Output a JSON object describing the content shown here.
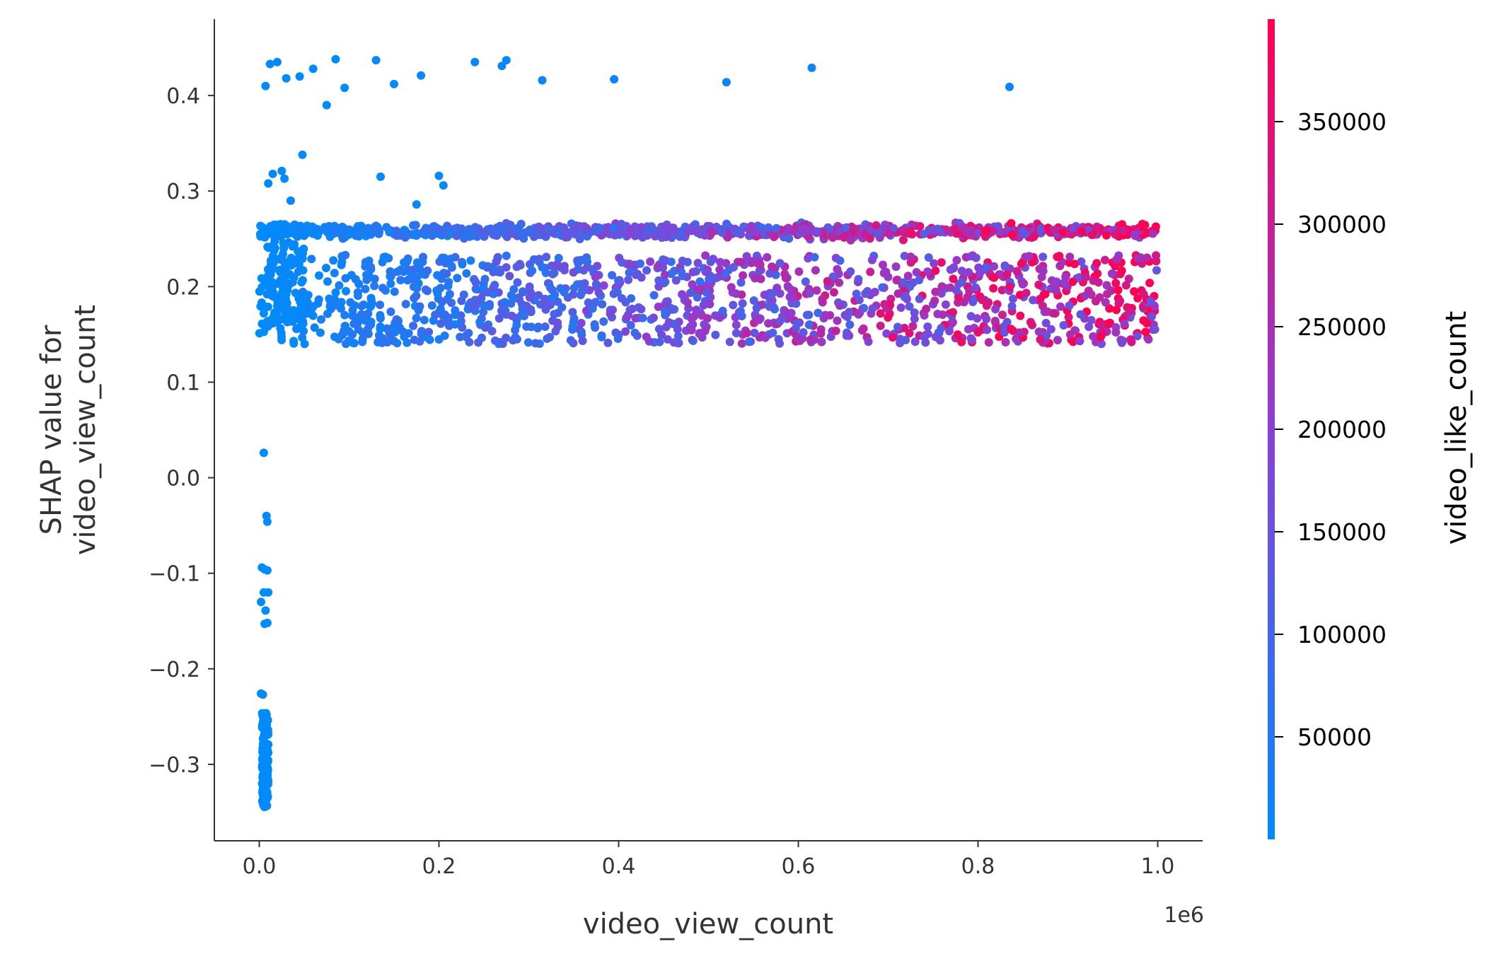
{
  "chart_data": {
    "type": "scatter",
    "xlabel": "video_view_count",
    "ylabel_lines": [
      "SHAP value for",
      "video_view_count"
    ],
    "x_offset_label": "1e6",
    "xlim": [
      -50000,
      1050000
    ],
    "ylim": [
      -0.38,
      0.48
    ],
    "x_ticks": [
      0,
      200000,
      400000,
      600000,
      800000,
      1000000
    ],
    "x_tick_labels": [
      "0.0",
      "0.2",
      "0.4",
      "0.6",
      "0.8",
      "1.0"
    ],
    "y_ticks": [
      -0.3,
      -0.2,
      -0.1,
      0.0,
      0.1,
      0.2,
      0.3,
      0.4
    ],
    "y_tick_labels": [
      "−0.3",
      "−0.2",
      "−0.1",
      "0.0",
      "0.1",
      "0.2",
      "0.3",
      "0.4"
    ],
    "colorbar": {
      "label": "video_like_count",
      "range": [
        0,
        400000
      ],
      "ticks": [
        50000,
        100000,
        150000,
        200000,
        250000,
        300000,
        350000
      ],
      "tick_labels": [
        "50000",
        "100000",
        "150000",
        "200000",
        "250000",
        "300000",
        "350000"
      ],
      "color_low": "#008bfb",
      "color_high": "#ff0052"
    },
    "points_note_free": true,
    "points": [
      [
        7000,
        0.41,
        2000
      ],
      [
        12000,
        0.433,
        3000
      ],
      [
        20000,
        0.435,
        2500
      ],
      [
        30000,
        0.418,
        4000
      ],
      [
        45000,
        0.42,
        5000
      ],
      [
        60000,
        0.428,
        3000
      ],
      [
        75000,
        0.39,
        4000
      ],
      [
        85000,
        0.438,
        6000
      ],
      [
        95000,
        0.408,
        5000
      ],
      [
        130000,
        0.437,
        7000
      ],
      [
        150000,
        0.412,
        8000
      ],
      [
        180000,
        0.421,
        9000
      ],
      [
        240000,
        0.435,
        10000
      ],
      [
        270000,
        0.431,
        12000
      ],
      [
        275000,
        0.437,
        11000
      ],
      [
        315000,
        0.416,
        13000
      ],
      [
        395000,
        0.417,
        14000
      ],
      [
        520000,
        0.414,
        16000
      ],
      [
        615000,
        0.429,
        18000
      ],
      [
        835000,
        0.409,
        20000
      ],
      [
        10000,
        0.308,
        3000
      ],
      [
        15000,
        0.318,
        4000
      ],
      [
        25000,
        0.321,
        3500
      ],
      [
        28000,
        0.313,
        3000
      ],
      [
        48000,
        0.338,
        5000
      ],
      [
        135000,
        0.315,
        7000
      ],
      [
        175000,
        0.286,
        8000
      ],
      [
        200000,
        0.316,
        9000
      ],
      [
        205000,
        0.306,
        9500
      ],
      [
        35000,
        0.29,
        4000
      ],
      [
        5000,
        0.026,
        0
      ],
      [
        8000,
        -0.04,
        1000
      ],
      [
        9000,
        -0.046,
        1200
      ],
      [
        3000,
        -0.094,
        500
      ],
      [
        6000,
        -0.096,
        800
      ],
      [
        9000,
        -0.097,
        900
      ],
      [
        2000,
        -0.13,
        400
      ],
      [
        5000,
        -0.12,
        700
      ],
      [
        7000,
        -0.139,
        800
      ],
      [
        6000,
        -0.153,
        900
      ],
      [
        9000,
        -0.152,
        1000
      ],
      [
        10000,
        -0.12,
        1100
      ],
      [
        2000,
        -0.226,
        300
      ],
      [
        4000,
        -0.227,
        400
      ]
    ]
  }
}
